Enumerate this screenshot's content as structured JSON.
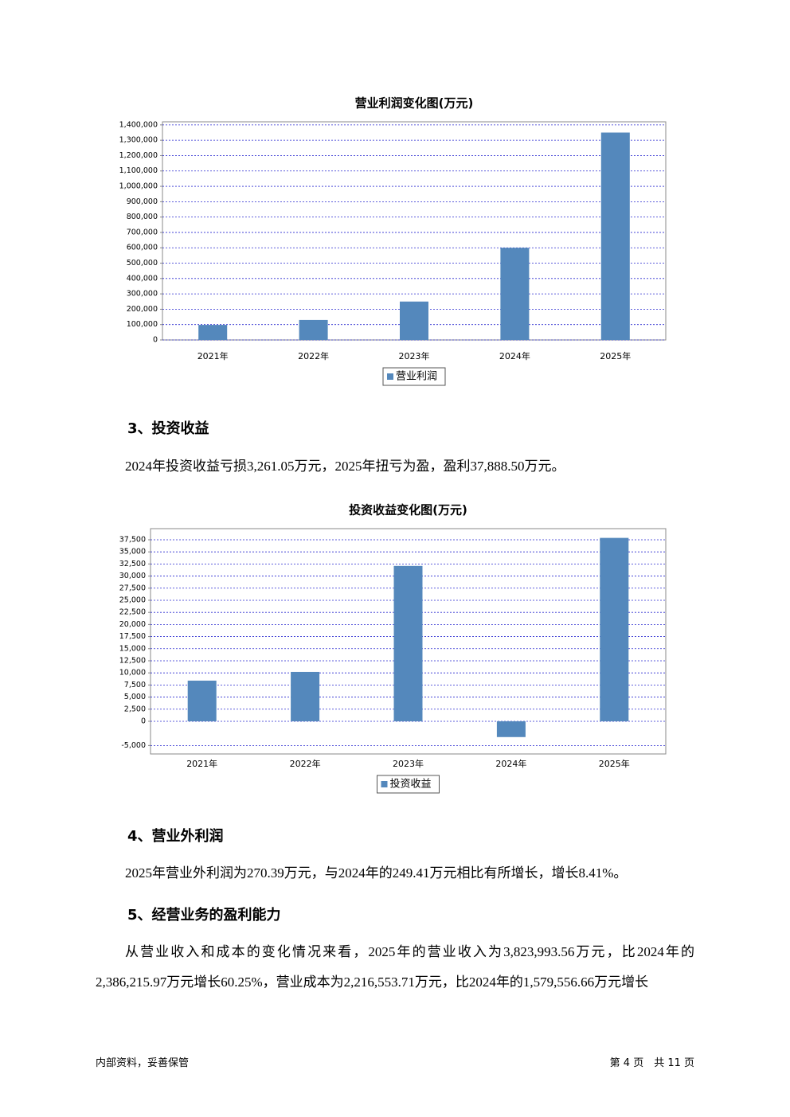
{
  "chart_data": [
    {
      "type": "bar",
      "title": "营业利润变化图(万元)",
      "categories": [
        "2021年",
        "2022年",
        "2023年",
        "2024年",
        "2025年"
      ],
      "series": [
        {
          "name": "营业利润",
          "color": "#5488bc",
          "values": [
            98000,
            130000,
            250000,
            600000,
            1350000
          ]
        }
      ],
      "ylim": [
        0,
        1420000
      ],
      "yticks": [
        0,
        {
          "value": 100000,
          "label": "100,000"
        },
        {
          "value": 200000,
          "label": "200,000"
        },
        {
          "value": 300000,
          "label": "300,000"
        },
        {
          "value": 400000,
          "label": "400,000"
        },
        {
          "value": 500000,
          "label": "500,000"
        },
        {
          "value": 600000,
          "label": "600,000"
        },
        {
          "value": 700000,
          "label": "700,000"
        },
        {
          "value": 800000,
          "label": "800,000"
        },
        {
          "value": 900000,
          "label": "900,000"
        },
        {
          "value": 1000000,
          "label": "1,000,000"
        },
        {
          "value": 1100000,
          "label": "1,100,000"
        },
        {
          "value": 1200000,
          "label": "1,200,000"
        },
        {
          "value": 1300000,
          "label": "1,300,000"
        },
        {
          "value": 1400000,
          "label": "1,400,000"
        }
      ],
      "grid": true
    },
    {
      "type": "bar",
      "title": "投资收益变化图(万元)",
      "categories": [
        "2021年",
        "2022年",
        "2023年",
        "2024年",
        "2025年"
      ],
      "series": [
        {
          "name": "投资收益",
          "color": "#5488bc",
          "values": [
            8400,
            10200,
            32100,
            -3261.05,
            37888.5
          ]
        }
      ],
      "ylim": [
        -6750,
        39800
      ],
      "yticks": [
        {
          "value": -5000,
          "label": "-5,000"
        },
        0,
        {
          "value": 2500,
          "label": "2,500"
        },
        {
          "value": 5000,
          "label": "5,000"
        },
        {
          "value": 7500,
          "label": "7,500"
        },
        {
          "value": 10000,
          "label": "10,000"
        },
        {
          "value": 12500,
          "label": "12,500"
        },
        {
          "value": 15000,
          "label": "15,000"
        },
        {
          "value": 17500,
          "label": "17,500"
        },
        {
          "value": 20000,
          "label": "20,000"
        },
        {
          "value": 22500,
          "label": "22,500"
        },
        {
          "value": 25000,
          "label": "25,000"
        },
        {
          "value": 27500,
          "label": "27,500"
        },
        {
          "value": 30000,
          "label": "30,000"
        },
        {
          "value": 32500,
          "label": "32,500"
        },
        {
          "value": 35000,
          "label": "35,000"
        },
        {
          "value": 37500,
          "label": "37,500"
        }
      ],
      "grid": true
    }
  ],
  "sections": [
    {
      "heading": "3、投资收益",
      "paragraphs": [
        "2024年投资收益亏损3,261.05万元，2025年扭亏为盈，盈利37,888.50万元。"
      ]
    },
    {
      "heading": "4、营业外利润",
      "paragraphs": [
        "2025年营业外利润为270.39万元，与2024年的249.41万元相比有所增长，增长8.41%。"
      ]
    },
    {
      "heading": "5、经营业务的盈利能力",
      "paragraphs": [
        "从营业收入和成本的变化情况来看，2025年的营业收入为3,823,993.56万元，比2024年的2,386,215.97万元增长60.25%，营业成本为2,216,553.71万元，比2024年的1,579,556.66万元增长"
      ]
    }
  ],
  "footer": {
    "left": "内部资料，妥善保管",
    "right": "第 4 页　共 11 页"
  }
}
